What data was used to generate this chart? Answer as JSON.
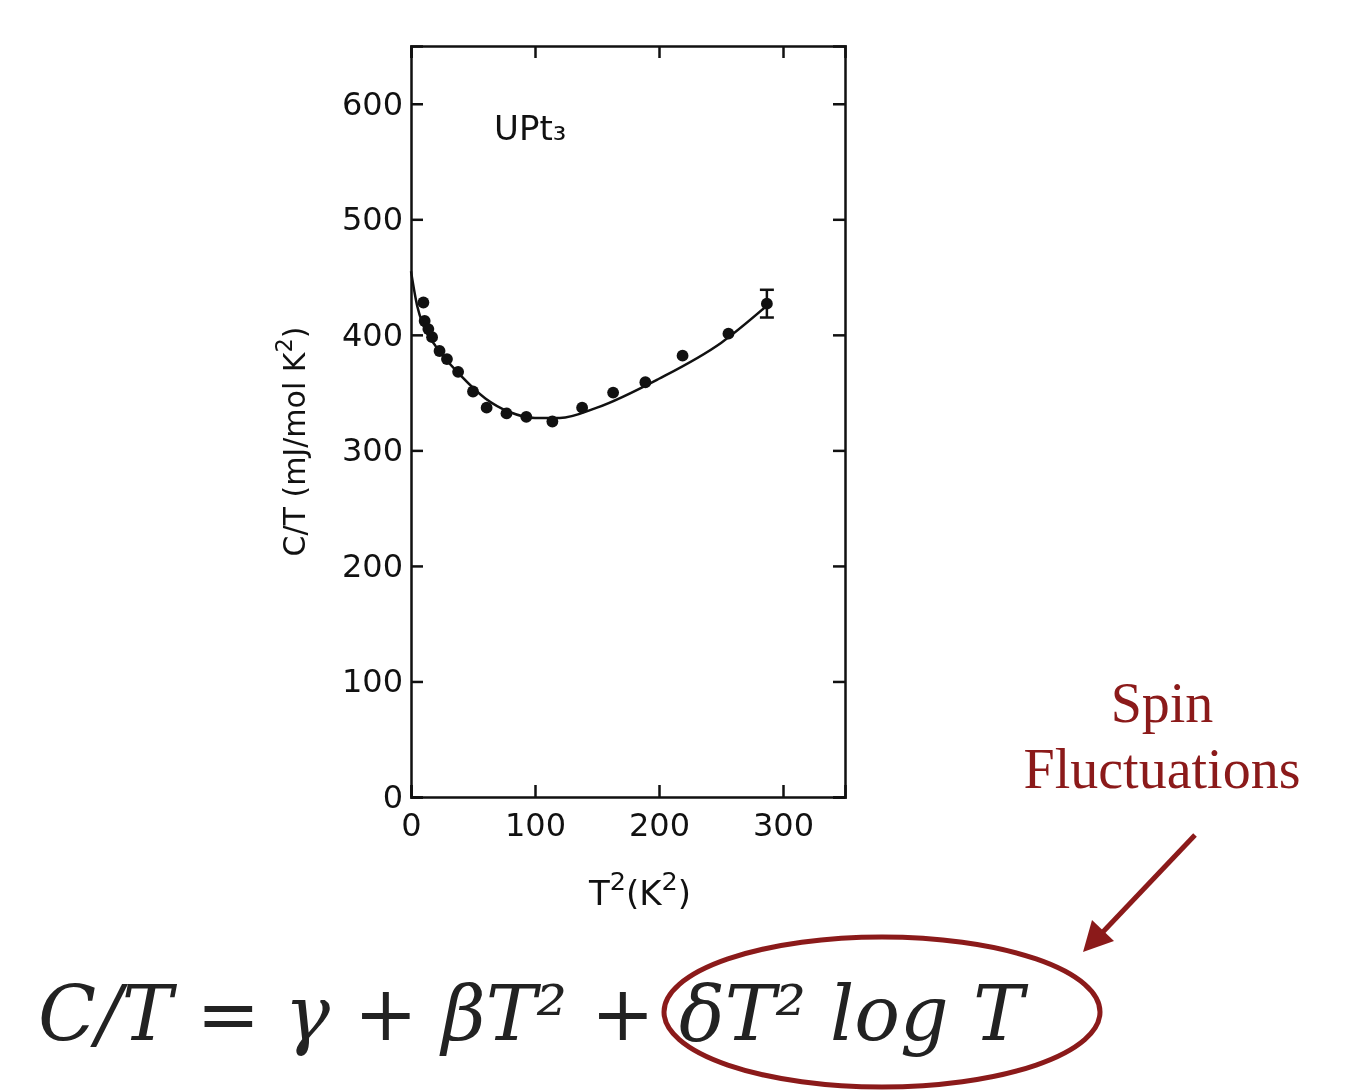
{
  "chart_data": {
    "type": "scatter",
    "xlabel": "T$^{2}$(K$^{2}$)",
    "ylabel": "C/T (mJ/mol K$^{2}$)",
    "xlim": [
      0,
      350
    ],
    "ylim": [
      0,
      650
    ],
    "xticks": [
      0,
      100,
      200,
      300
    ],
    "yticks": [
      0,
      100,
      200,
      300,
      400,
      500,
      600
    ],
    "grid": false,
    "series": [
      {
        "marker": "circle",
        "color": "#111111",
        "x": [
          10,
          11,
          14,
          17,
          23,
          29,
          38,
          50,
          61,
          77,
          93,
          114,
          138,
          163,
          189,
          219,
          256,
          287
        ],
        "values": [
          428,
          412,
          405,
          398,
          386,
          379,
          368,
          351,
          337,
          332,
          329,
          325,
          337,
          350,
          359,
          382,
          401,
          427
        ],
        "errors": [
          null,
          null,
          null,
          null,
          null,
          null,
          null,
          null,
          null,
          null,
          null,
          null,
          null,
          null,
          null,
          null,
          null,
          12
        ]
      },
      {
        "type": "line",
        "color": "#111111",
        "line_style": "solid",
        "x": [
          0,
          5,
          10,
          20,
          40,
          60,
          80,
          100,
          120,
          150,
          200,
          250,
          290
        ],
        "values": [
          455,
          425,
          408,
          390,
          365,
          345,
          333,
          328,
          328,
          337,
          362,
          393,
          428
        ]
      }
    ],
    "annotations": [
      "UPt₃",
      "C/T = γ + βT² + δT² log T",
      "Spin Fluctuations"
    ]
  }
}
